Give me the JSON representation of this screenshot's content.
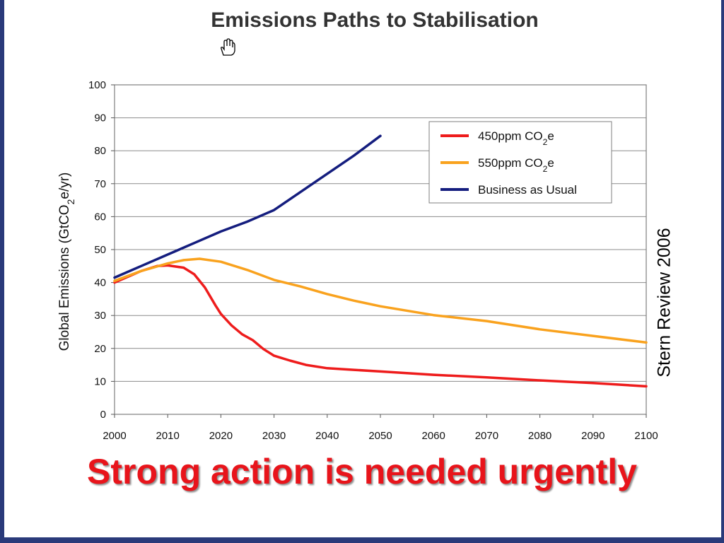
{
  "slide": {
    "headline": "Strong action is needed urgently",
    "source": "Stern Review 2006",
    "headline_color": "#e8141b",
    "cursor_icon": "hand-pointer-icon"
  },
  "chart_data": {
    "type": "line",
    "title": "Emissions Paths to Stabilisation",
    "xlabel": "",
    "ylabel": "Global Emissions (GtCO2e/yr)",
    "xlim": [
      2000,
      2100
    ],
    "ylim": [
      0,
      100
    ],
    "x_ticks": [
      2000,
      2010,
      2020,
      2030,
      2040,
      2050,
      2060,
      2070,
      2080,
      2090,
      2100
    ],
    "y_ticks": [
      0,
      10,
      20,
      30,
      40,
      50,
      60,
      70,
      80,
      90,
      100
    ],
    "grid": true,
    "legend_position": "top-right",
    "series": [
      {
        "name": "450ppm CO2e",
        "color": "#ee1c1c",
        "x": [
          2000,
          2005,
          2008,
          2010,
          2013,
          2015,
          2017,
          2019,
          2020,
          2022,
          2024,
          2026,
          2028,
          2030,
          2033,
          2036,
          2040,
          2045,
          2050,
          2060,
          2070,
          2080,
          2090,
          2100
        ],
        "y": [
          40,
          43.5,
          45,
          45.2,
          44.5,
          42.5,
          38.5,
          33,
          30.5,
          27,
          24.3,
          22.5,
          19.8,
          17.8,
          16.3,
          15,
          14,
          13.5,
          13,
          12,
          11.2,
          10.3,
          9.5,
          8.5
        ]
      },
      {
        "name": "550ppm CO2e",
        "color": "#f9a21e",
        "x": [
          2000,
          2005,
          2010,
          2013,
          2016,
          2020,
          2025,
          2030,
          2035,
          2040,
          2045,
          2050,
          2060,
          2070,
          2080,
          2090,
          2100
        ],
        "y": [
          40.5,
          43.5,
          45.8,
          46.8,
          47.2,
          46.3,
          43.8,
          40.8,
          38.8,
          36.5,
          34.5,
          32.8,
          30.1,
          28.3,
          25.8,
          23.8,
          21.8
        ]
      },
      {
        "name": "Business as Usual",
        "color": "#141d7e",
        "x": [
          2000,
          2005,
          2010,
          2015,
          2020,
          2025,
          2030,
          2035,
          2040,
          2045,
          2050
        ],
        "y": [
          41.5,
          45,
          48.5,
          52,
          55.5,
          58.5,
          62,
          67.5,
          73,
          78.5,
          84.5
        ]
      }
    ]
  }
}
